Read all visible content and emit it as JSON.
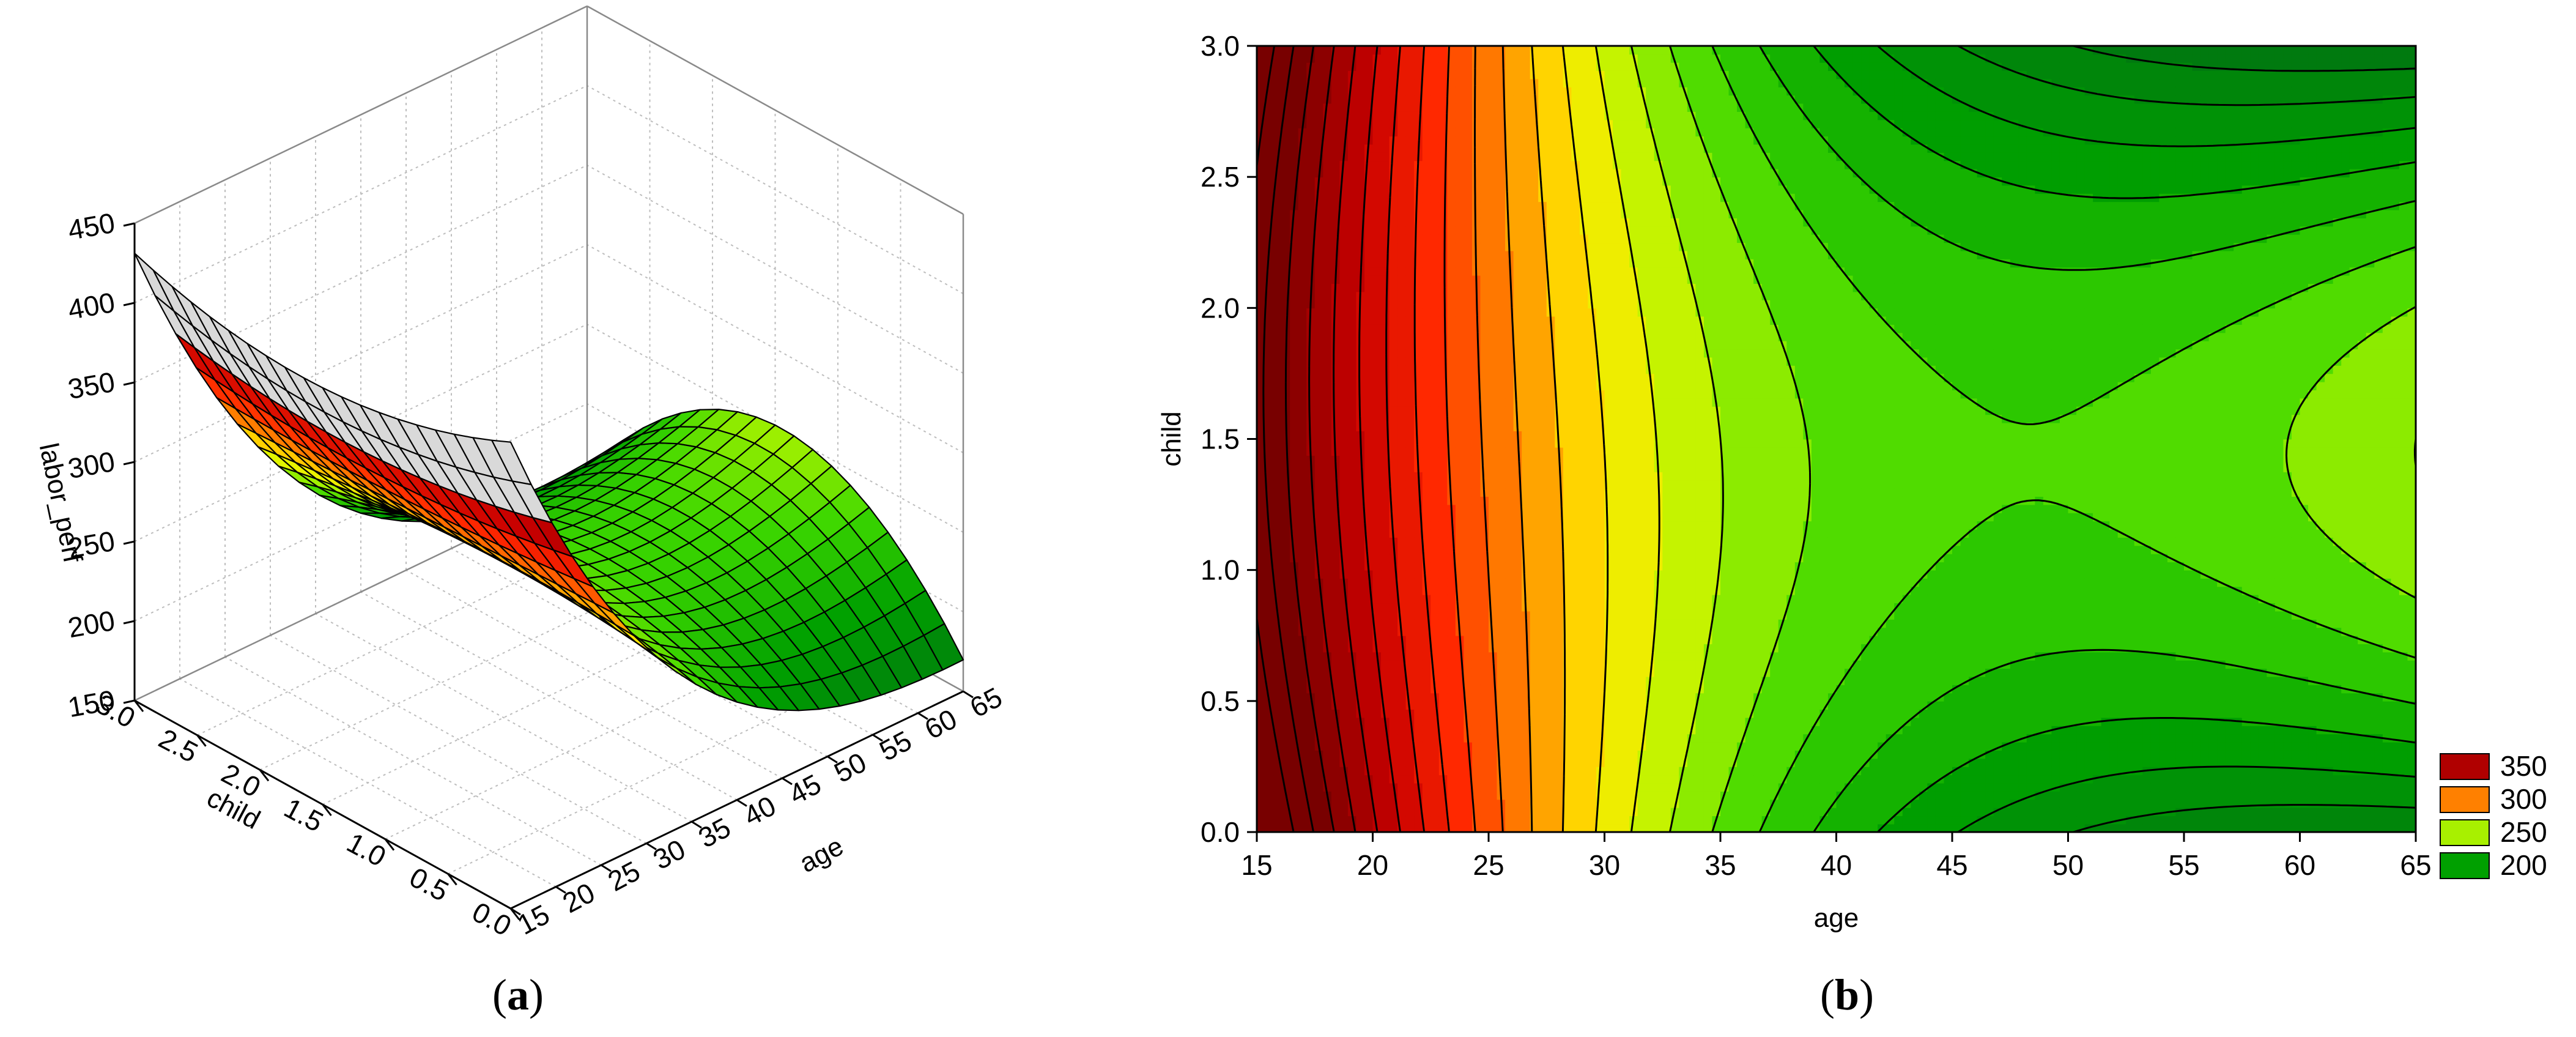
{
  "chart_data": [
    {
      "panel": "a",
      "type": "surface3d",
      "caption_letter": "a",
      "xlabel": "age",
      "ylabel": "child",
      "zlabel": "labor_perf",
      "x_ticks": [
        "15",
        "20",
        "25",
        "30",
        "35",
        "40",
        "45",
        "50",
        "55",
        "60",
        "65"
      ],
      "y_ticks": [
        "0.0",
        "0.5",
        "1.0",
        "1.5",
        "2.0",
        "2.5",
        "3.0"
      ],
      "z_ticks": [
        "150",
        "200",
        "250",
        "300",
        "350",
        "400",
        "450"
      ],
      "xlim": [
        15,
        65
      ],
      "ylim": [
        0,
        3
      ],
      "zlim": [
        150,
        450
      ],
      "grid": true,
      "colormap": "dark red - red - orange - yellow - green"
    },
    {
      "panel": "b",
      "type": "contour",
      "caption_letter": "b",
      "xlabel": "age",
      "ylabel": "child",
      "x_ticks": [
        "15",
        "20",
        "25",
        "30",
        "35",
        "40",
        "45",
        "50",
        "55",
        "60",
        "65"
      ],
      "y_ticks": [
        "0.0",
        "0.5",
        "1.0",
        "1.5",
        "2.0",
        "2.5",
        "3.0"
      ],
      "xlim": [
        15,
        65
      ],
      "ylim": [
        0,
        3
      ],
      "legend": {
        "placement": "right-bottom",
        "entries": [
          {
            "label": "350",
            "color": "#b00000"
          },
          {
            "label": "300",
            "color": "#ff8000"
          },
          {
            "label": "250",
            "color": "#a8f000"
          },
          {
            "label": "200",
            "color": "#00a000"
          }
        ]
      }
    }
  ],
  "captions": {
    "a": "a",
    "b": "b"
  }
}
